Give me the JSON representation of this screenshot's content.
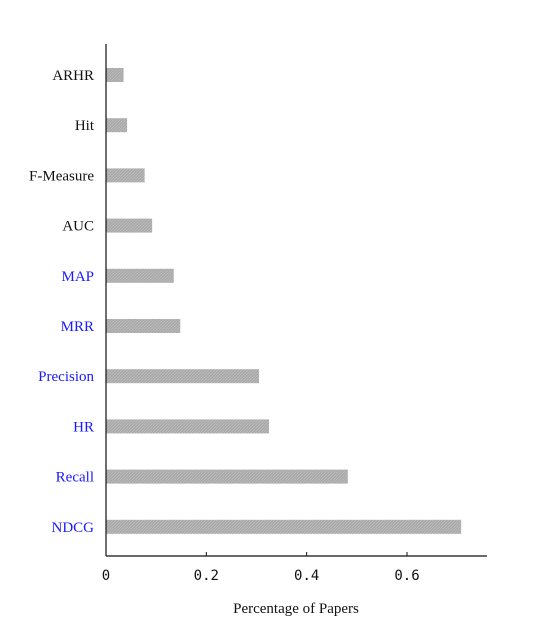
{
  "chart_data": {
    "type": "bar",
    "orientation": "horizontal",
    "categories": [
      "ARHR",
      "Hit",
      "F-Measure",
      "AUC",
      "MAP",
      "MRR",
      "Precision",
      "HR",
      "Recall",
      "NDCG"
    ],
    "values": [
      0.035,
      0.042,
      0.077,
      0.092,
      0.135,
      0.148,
      0.305,
      0.325,
      0.482,
      0.708
    ],
    "highlighted": [
      false,
      false,
      false,
      false,
      true,
      true,
      true,
      true,
      true,
      true
    ],
    "xlabel": "Percentage of Papers",
    "ylabel": "",
    "xlim": [
      0,
      0.75
    ],
    "xticks": [
      0,
      0.2,
      0.4,
      0.6
    ],
    "xtick_labels": [
      "0",
      "0.2",
      "0.4",
      "0.6"
    ],
    "grid": false,
    "colors": {
      "bar": "#a9a9a9",
      "label_default": "#111111",
      "label_highlight": "#1a1aff",
      "axis": "#111111"
    }
  }
}
